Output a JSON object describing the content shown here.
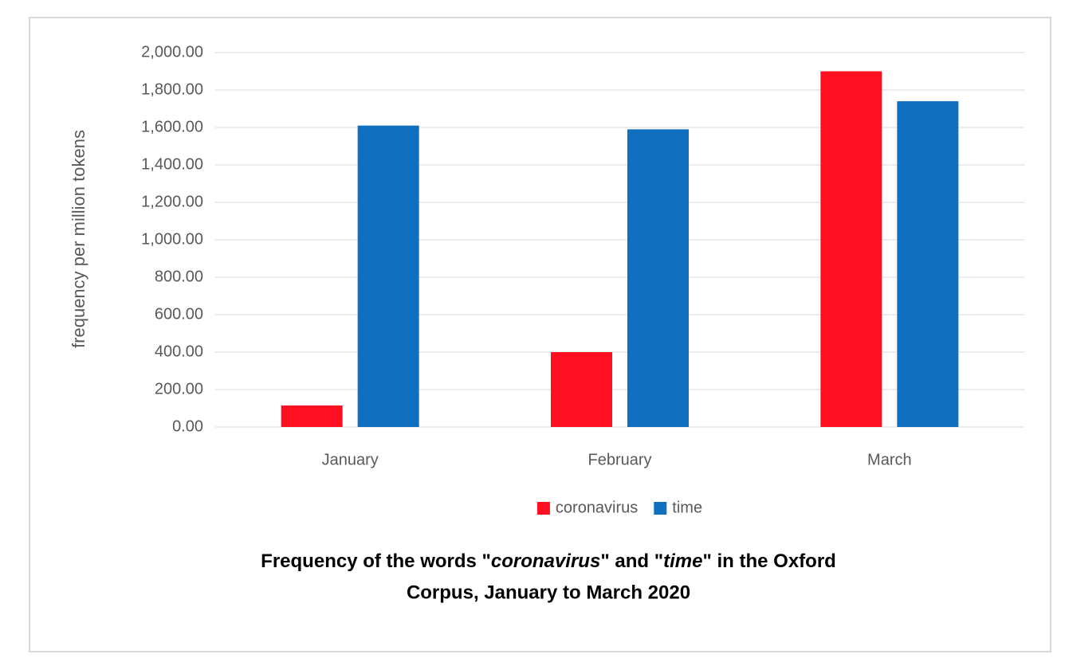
{
  "chart_data": {
    "type": "bar",
    "title": [
      "Frequency of the words \"",
      "coronavirus",
      "\" and \"",
      "time",
      "\" in the Oxford",
      "Corpus, January to March 2020"
    ],
    "y_label": "frequency per million tokens",
    "categories": [
      "January",
      "February",
      "March"
    ],
    "series": [
      {
        "name": "coronavirus",
        "color": "#ff1020",
        "values": [
          115,
          400,
          1900
        ]
      },
      {
        "name": "time",
        "color": "#1070c0",
        "values": [
          1610,
          1590,
          1740
        ]
      }
    ],
    "ylim": [
      0,
      2000
    ],
    "yticks": [
      {
        "value": 0,
        "label": "0.00"
      },
      {
        "value": 200,
        "label": "200.00"
      },
      {
        "value": 400,
        "label": "400.00"
      },
      {
        "value": 600,
        "label": "600.00"
      },
      {
        "value": 800,
        "label": "800.00"
      },
      {
        "value": 1000,
        "label": "1,000.00"
      },
      {
        "value": 1200,
        "label": "1,200.00"
      },
      {
        "value": 1400,
        "label": "1,400.00"
      },
      {
        "value": 1600,
        "label": "1,600.00"
      },
      {
        "value": 1800,
        "label": "1,800.00"
      },
      {
        "value": 2000,
        "label": "2,000.00"
      }
    ],
    "grid": true,
    "legend": "bottom"
  }
}
